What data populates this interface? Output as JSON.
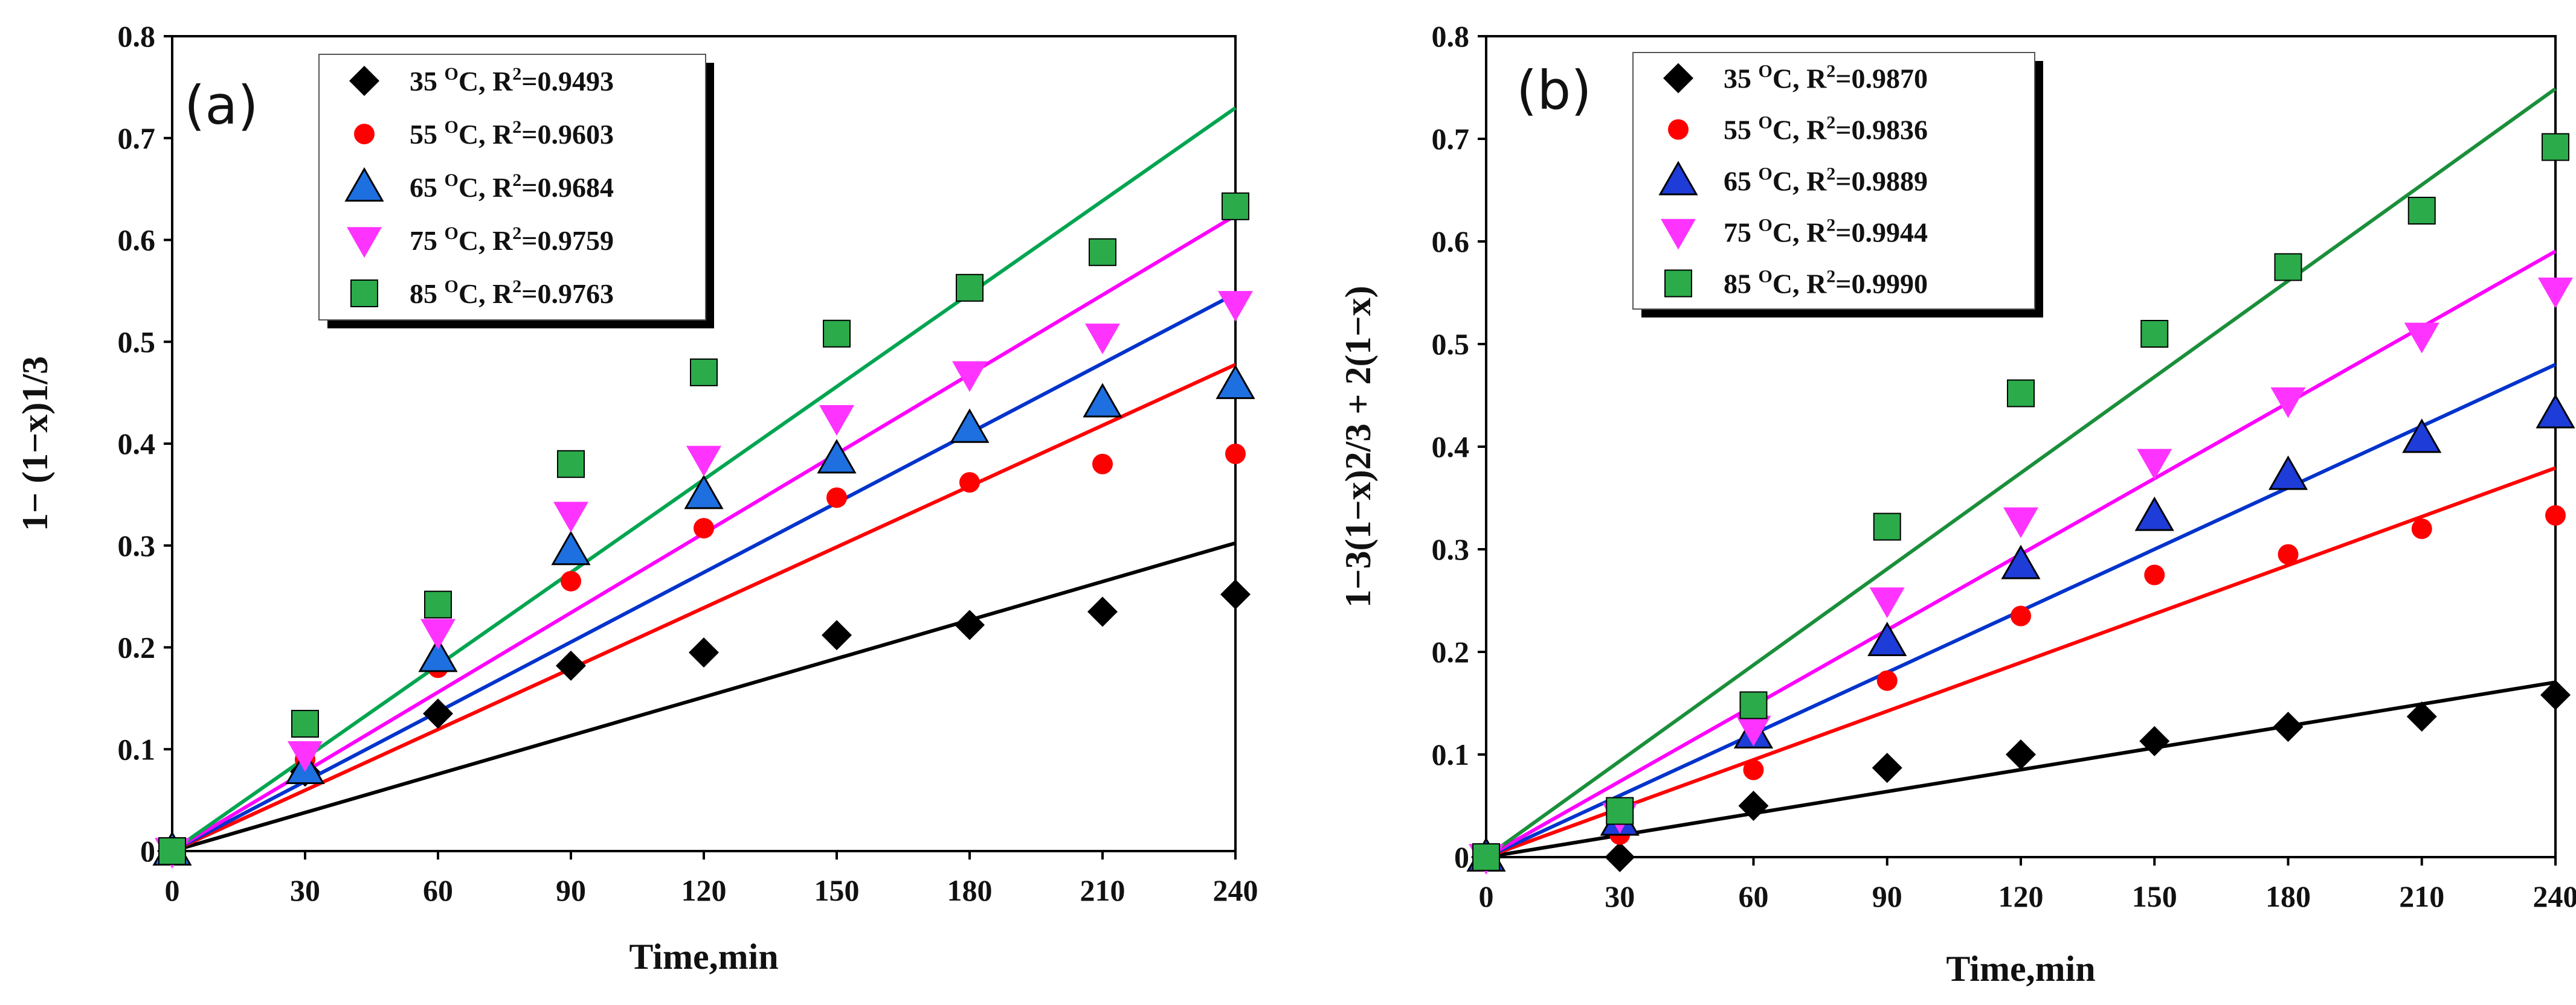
{
  "chart_data": [
    {
      "type": "scatter",
      "panel_label": "(a)",
      "xlabel": "Time,min",
      "ylabel": "1− (1−x)1/3",
      "xlim": [
        0,
        240
      ],
      "ylim": [
        0,
        0.8
      ],
      "xticks": [
        0,
        30,
        60,
        90,
        120,
        150,
        180,
        210,
        240
      ],
      "yticks": [
        0,
        0.1,
        0.2,
        0.3,
        0.4,
        0.5,
        0.6,
        0.7,
        0.8
      ],
      "ytick_labels": [
        "0",
        "0.1",
        "0.2",
        "0.3",
        "0.4",
        "0.5",
        "0.6",
        "0.7",
        "0.8"
      ],
      "legend_position": "top-left",
      "series": [
        {
          "name": "35 °C, R²=0.9493",
          "temp": "35",
          "r2": "0.9493",
          "marker": "diamond",
          "color": "#000000",
          "line_color": "#000000",
          "x": [
            0,
            30,
            60,
            90,
            120,
            150,
            180,
            210,
            240
          ],
          "y": [
            0,
            0.078,
            0.135,
            0.182,
            0.195,
            0.212,
            0.222,
            0.235,
            0.252
          ],
          "fit_slope": 0.00126
        },
        {
          "name": "55 °C, R²=0.9603",
          "temp": "55",
          "r2": "0.9603",
          "marker": "circle",
          "color": "#ff0000",
          "line_color": "#ff0000",
          "x": [
            0,
            30,
            60,
            90,
            120,
            150,
            180,
            210,
            240
          ],
          "y": [
            0,
            0.09,
            0.18,
            0.265,
            0.317,
            0.347,
            0.362,
            0.38,
            0.39
          ],
          "fit_slope": 0.00199
        },
        {
          "name": "65 °C, R²=0.9684",
          "temp": "65",
          "r2": "0.9684",
          "marker": "triangle-up",
          "color": "#1e6fe0",
          "line_color": "#0033cc",
          "x": [
            0,
            30,
            60,
            90,
            120,
            150,
            180,
            210,
            240
          ],
          "y": [
            0,
            0.08,
            0.19,
            0.295,
            0.35,
            0.385,
            0.415,
            0.44,
            0.458
          ],
          "fit_slope": 0.00228
        },
        {
          "name": "75 °C, R²=0.9759",
          "temp": "75",
          "r2": "0.9759",
          "marker": "triangle-down",
          "color": "#ff33ff",
          "line_color": "#ff00ff",
          "x": [
            0,
            30,
            60,
            90,
            120,
            150,
            180,
            210,
            240
          ],
          "y": [
            0,
            0.095,
            0.215,
            0.33,
            0.385,
            0.425,
            0.468,
            0.505,
            0.537
          ],
          "fit_slope": 0.0026
        },
        {
          "name": "85 °C, R²=0.9763",
          "temp": "85",
          "r2": "0.9763",
          "marker": "square",
          "color": "#2bab4a",
          "line_color": "#00a550",
          "x": [
            0,
            30,
            60,
            90,
            120,
            150,
            180,
            210,
            240
          ],
          "y": [
            0,
            0.125,
            0.242,
            0.38,
            0.47,
            0.508,
            0.553,
            0.588,
            0.633
          ],
          "fit_slope": 0.00304
        }
      ]
    },
    {
      "type": "scatter",
      "panel_label": "(b)",
      "xlabel": "Time,min",
      "ylabel": "1−3(1−x)2/3 + 2(1−x)",
      "xlim": [
        0,
        240
      ],
      "ylim": [
        0,
        0.8
      ],
      "xticks": [
        0,
        30,
        60,
        90,
        120,
        150,
        180,
        210,
        240
      ],
      "yticks": [
        0,
        0.1,
        0.2,
        0.3,
        0.4,
        0.5,
        0.6,
        0.7,
        0.8
      ],
      "ytick_labels": [
        "0",
        "0.1",
        "0.2",
        "0.3",
        "0.4",
        "0.5",
        "0.6",
        "0.7",
        "0.8"
      ],
      "legend_position": "top-left",
      "series": [
        {
          "name": "35 °C, R²=0.9870",
          "temp": "35",
          "r2": "0.9870",
          "marker": "diamond",
          "color": "#000000",
          "line_color": "#000000",
          "x": [
            0,
            30,
            60,
            90,
            120,
            150,
            180,
            210,
            240
          ],
          "y": [
            0,
            0.0,
            0.05,
            0.087,
            0.1,
            0.113,
            0.127,
            0.137,
            0.158
          ],
          "fit_slope": 0.00071
        },
        {
          "name": "55 °C, R²=0.9836",
          "temp": "55",
          "r2": "0.9836",
          "marker": "circle",
          "color": "#ff0000",
          "line_color": "#ff0000",
          "x": [
            0,
            30,
            60,
            90,
            120,
            150,
            180,
            210,
            240
          ],
          "y": [
            0,
            0.022,
            0.085,
            0.172,
            0.235,
            0.275,
            0.295,
            0.32,
            0.333
          ],
          "fit_slope": 0.00158
        },
        {
          "name": "65 °C, R²=0.9889",
          "temp": "65",
          "r2": "0.9889",
          "marker": "triangle-up",
          "color": "#1e3cd8",
          "line_color": "#0033cc",
          "x": [
            0,
            30,
            60,
            90,
            120,
            150,
            180,
            210,
            240
          ],
          "y": [
            0,
            0.035,
            0.12,
            0.21,
            0.285,
            0.332,
            0.372,
            0.408,
            0.432
          ],
          "fit_slope": 0.002
        },
        {
          "name": "75 °C, R²=0.9944",
          "temp": "75",
          "r2": "0.9944",
          "marker": "triangle-down",
          "color": "#ff33ff",
          "line_color": "#ff00ff",
          "x": [
            0,
            30,
            60,
            90,
            120,
            150,
            180,
            210,
            240
          ],
          "y": [
            0,
            0.04,
            0.125,
            0.25,
            0.328,
            0.385,
            0.445,
            0.508,
            0.552
          ],
          "fit_slope": 0.00246
        },
        {
          "name": "85 °C, R²=0.9990",
          "temp": "85",
          "r2": "0.9990",
          "marker": "square",
          "color": "#2bab4a",
          "line_color": "#1a8f3a",
          "x": [
            0,
            30,
            60,
            90,
            120,
            150,
            180,
            210,
            240
          ],
          "y": [
            0,
            0.045,
            0.148,
            0.322,
            0.452,
            0.51,
            0.575,
            0.63,
            0.692
          ],
          "fit_slope": 0.00312
        }
      ]
    }
  ]
}
